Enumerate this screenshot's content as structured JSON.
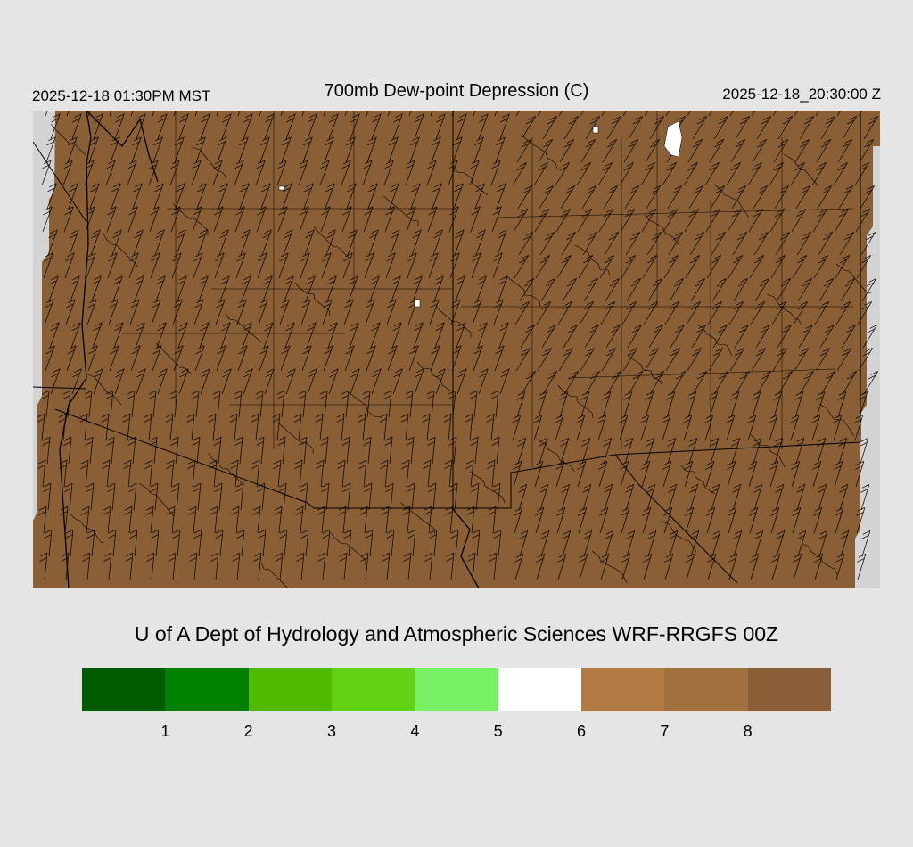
{
  "header": {
    "local_time": "2025-12-18 01:30PM MST",
    "title": "700mb Dew-point Depression (C)",
    "valid_time": "2025-12-18_20:30:00 Z"
  },
  "credit": "U of A Dept of Hydrology and Atmospheric Sciences WRF-RRGFS 00Z",
  "map": {
    "field_color": "#8a5f35",
    "missing_color": "#d3d3d3",
    "boundary_color": "#000000"
  },
  "colorbar": {
    "colors": [
      "#005a00",
      "#008000",
      "#50b900",
      "#64d214",
      "#78f064",
      "#ffffff",
      "#b27b45",
      "#a37140",
      "#8a5f35"
    ],
    "ticks": [
      "1",
      "2",
      "3",
      "4",
      "5",
      "6",
      "7",
      "8"
    ]
  }
}
